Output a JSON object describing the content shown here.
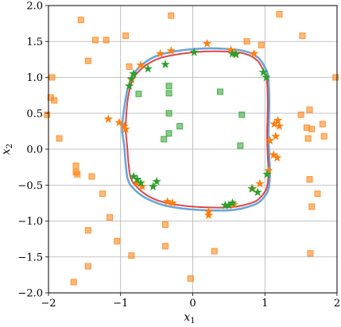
{
  "chart_data": {
    "type": "scatter",
    "title": "",
    "xlabel": "x",
    "xlabel_sub": "1",
    "ylabel": "x",
    "ylabel_sub": "2",
    "xlim": [
      -2.0,
      2.0
    ],
    "ylim": [
      -2.0,
      2.0
    ],
    "xticks": [
      -2,
      -1,
      0,
      1,
      2
    ],
    "yticks": [
      -2,
      -1.5,
      -1,
      -0.5,
      0,
      0.5,
      1,
      1.5,
      2
    ],
    "xtick_labels": [
      "−2",
      "−1",
      "0",
      "1",
      "2"
    ],
    "ytick_labels": [
      "−2.0",
      "−1.5",
      "−1.0",
      "−0.5",
      "0.0",
      "0.5",
      "1.0",
      "1.5",
      "2.0"
    ],
    "grid": true,
    "colors": {
      "orange": "#ff7f0e",
      "green": "#2ca02c",
      "blue_curve": "#5b9bd5",
      "red_curve": "#d62728",
      "grid": "#b0b0b0"
    },
    "series": [
      {
        "marker": "square",
        "color": "#ff7f0e",
        "points": [
          [
            -1.55,
            1.8
          ],
          [
            -1.35,
            1.52
          ],
          [
            -1.2,
            1.52
          ],
          [
            -0.93,
            1.58
          ],
          [
            -0.3,
            1.86
          ],
          [
            1.2,
            1.88
          ],
          [
            1.52,
            1.58
          ],
          [
            -1.45,
            1.23
          ],
          [
            -0.88,
            1.15
          ],
          [
            -1.95,
            1.0
          ],
          [
            -1.97,
            0.72
          ],
          [
            -1.92,
            0.68
          ],
          [
            -2.02,
            0.48
          ],
          [
            -1.85,
            0.15
          ],
          [
            -1.62,
            -0.23
          ],
          [
            -1.62,
            -0.32
          ],
          [
            -1.6,
            -0.35
          ],
          [
            -1.25,
            -0.62
          ],
          [
            -1.15,
            -0.95
          ],
          [
            -1.45,
            -1.13
          ],
          [
            -1.05,
            -1.28
          ],
          [
            -1.45,
            -1.63
          ],
          [
            -0.85,
            -1.48
          ],
          [
            -1.65,
            -1.85
          ],
          [
            -0.38,
            -1.05
          ],
          [
            -0.38,
            -1.35
          ],
          [
            0.3,
            -1.42
          ],
          [
            -0.03,
            -1.8
          ],
          [
            1.63,
            -1.45
          ],
          [
            1.65,
            -0.8
          ],
          [
            1.73,
            -0.62
          ],
          [
            1.62,
            -0.42
          ],
          [
            1.82,
            0.18
          ],
          [
            1.65,
            0.28
          ],
          [
            1.58,
            0.3
          ],
          [
            1.8,
            0.35
          ],
          [
            1.62,
            0.55
          ],
          [
            1.5,
            0.48
          ],
          [
            1.98,
            1.0
          ],
          [
            0.75,
            1.5
          ],
          [
            0.95,
            1.45
          ],
          [
            -1.4,
            -0.38
          ],
          [
            1.6,
            0.15
          ]
        ]
      },
      {
        "marker": "star",
        "color": "#ff7f0e",
        "points": [
          [
            -0.3,
            1.37
          ],
          [
            -0.45,
            1.33
          ],
          [
            -0.72,
            1.17
          ],
          [
            0.2,
            1.47
          ],
          [
            0.53,
            1.38
          ],
          [
            0.58,
            1.33
          ],
          [
            0.85,
            1.33
          ],
          [
            -0.85,
            0.97
          ],
          [
            -1.17,
            0.42
          ],
          [
            -1.02,
            0.37
          ],
          [
            -0.95,
            0.32
          ],
          [
            -0.93,
            0.28
          ],
          [
            1.13,
            0.35
          ],
          [
            1.2,
            0.32
          ],
          [
            1.15,
            0.18
          ],
          [
            1.07,
            0.12
          ],
          [
            -0.78,
            -0.47
          ],
          [
            -0.7,
            -0.52
          ],
          [
            -0.35,
            -0.73
          ],
          [
            -0.28,
            -0.75
          ],
          [
            0.22,
            -0.87
          ],
          [
            0.22,
            -0.92
          ],
          [
            0.57,
            -0.77
          ],
          [
            0.83,
            -0.55
          ],
          [
            0.93,
            -0.48
          ],
          [
            1.05,
            -0.3
          ],
          [
            1.17,
            -0.12
          ],
          [
            1.12,
            -0.08
          ],
          [
            1.18,
            0.4
          ]
        ]
      },
      {
        "marker": "square",
        "color": "#2ca02c",
        "points": [
          [
            -0.33,
            0.88
          ],
          [
            -0.33,
            0.78
          ],
          [
            -0.75,
            0.77
          ],
          [
            0.38,
            0.8
          ],
          [
            -0.33,
            0.5
          ],
          [
            0.68,
            0.48
          ],
          [
            -0.18,
            0.32
          ],
          [
            -0.33,
            0.22
          ],
          [
            -0.4,
            0.14
          ],
          [
            0.66,
            0.05
          ]
        ]
      },
      {
        "marker": "star",
        "color": "#2ca02c",
        "points": [
          [
            -0.88,
            0.88
          ],
          [
            -0.85,
            0.98
          ],
          [
            -0.82,
            1.05
          ],
          [
            -0.62,
            1.12
          ],
          [
            -0.38,
            1.18
          ],
          [
            0.02,
            1.35
          ],
          [
            0.55,
            1.33
          ],
          [
            0.6,
            1.32
          ],
          [
            0.98,
            1.07
          ],
          [
            1.02,
            1.0
          ],
          [
            -0.82,
            -0.38
          ],
          [
            -0.77,
            -0.42
          ],
          [
            -0.72,
            -0.47
          ],
          [
            -0.5,
            -0.45
          ],
          [
            -0.55,
            -0.52
          ],
          [
            0.45,
            -0.78
          ],
          [
            0.5,
            -0.78
          ],
          [
            0.55,
            -0.75
          ],
          [
            0.82,
            -0.55
          ],
          [
            0.9,
            -0.6
          ],
          [
            1.03,
            -0.35
          ]
        ]
      }
    ],
    "curves": [
      {
        "color": "#5b9bd5",
        "x": [
          -0.85,
          -0.82,
          -0.7,
          -0.5,
          -0.2,
          0.1,
          0.4,
          0.7,
          0.9,
          1.02,
          1.05,
          1.06,
          1.05,
          1.06,
          1.07,
          1.05,
          1.0,
          0.9,
          0.7,
          0.5,
          0.2,
          -0.1,
          -0.4,
          -0.65,
          -0.82,
          -0.9,
          -0.93,
          -0.95,
          -0.98,
          -0.96,
          -0.93,
          -0.9,
          -0.85
        ],
        "y": [
          0.98,
          1.05,
          1.18,
          1.3,
          1.37,
          1.4,
          1.4,
          1.37,
          1.28,
          1.1,
          0.95,
          0.6,
          0.2,
          -0.1,
          -0.35,
          -0.55,
          -0.65,
          -0.75,
          -0.82,
          -0.85,
          -0.85,
          -0.83,
          -0.78,
          -0.68,
          -0.55,
          -0.42,
          -0.2,
          0.05,
          0.28,
          0.5,
          0.7,
          0.85,
          0.98
        ]
      },
      {
        "color": "#d62728",
        "x": [
          -0.83,
          -0.78,
          -0.65,
          -0.45,
          -0.15,
          0.15,
          0.45,
          0.72,
          0.9,
          1.0,
          1.03,
          1.04,
          1.03,
          1.04,
          1.05,
          1.03,
          0.98,
          0.88,
          0.7,
          0.5,
          0.2,
          -0.1,
          -0.4,
          -0.62,
          -0.78,
          -0.86,
          -0.89,
          -0.91,
          -0.93,
          -0.92,
          -0.9,
          -0.87,
          -0.83
        ],
        "y": [
          0.97,
          1.05,
          1.17,
          1.27,
          1.33,
          1.36,
          1.36,
          1.33,
          1.23,
          1.05,
          0.92,
          0.6,
          0.2,
          -0.1,
          -0.33,
          -0.52,
          -0.62,
          -0.72,
          -0.78,
          -0.81,
          -0.81,
          -0.79,
          -0.74,
          -0.65,
          -0.52,
          -0.4,
          -0.2,
          0.05,
          0.28,
          0.5,
          0.7,
          0.85,
          0.97
        ]
      }
    ]
  }
}
